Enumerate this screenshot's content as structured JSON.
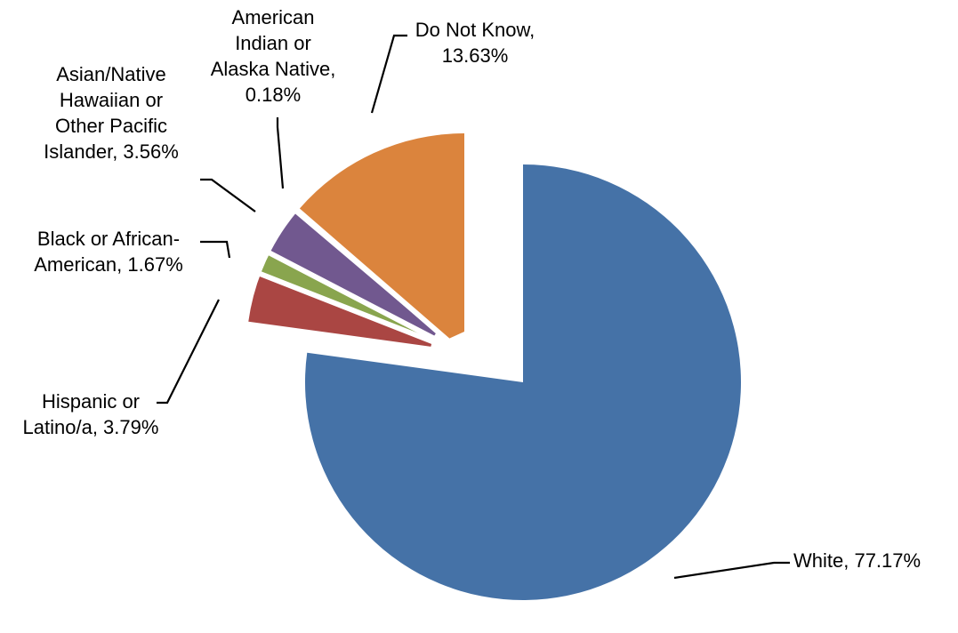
{
  "chart_data": {
    "type": "pie",
    "title": "",
    "slices": [
      {
        "label": "White",
        "value": 77.17,
        "value_text": "77.17%",
        "color": "#4572A7"
      },
      {
        "label": "Hispanic or Latino/a",
        "value": 3.79,
        "value_text": "3.79%",
        "color": "#AA4643"
      },
      {
        "label": "Black or African-American",
        "value": 1.67,
        "value_text": "1.67%",
        "color": "#89A54E"
      },
      {
        "label": "Asian/Native Hawaiian or Other Pacific Islander",
        "value": 3.56,
        "value_text": "3.56%",
        "color": "#71588F"
      },
      {
        "label": "American Indian or Alaska Native",
        "value": 0.18,
        "value_text": "0.18%",
        "color": "#4198AF"
      },
      {
        "label": "Do Not Know",
        "value": 13.63,
        "value_text": "13.63%",
        "color": "#DB843D"
      }
    ],
    "exploded": true,
    "legend": "none"
  }
}
